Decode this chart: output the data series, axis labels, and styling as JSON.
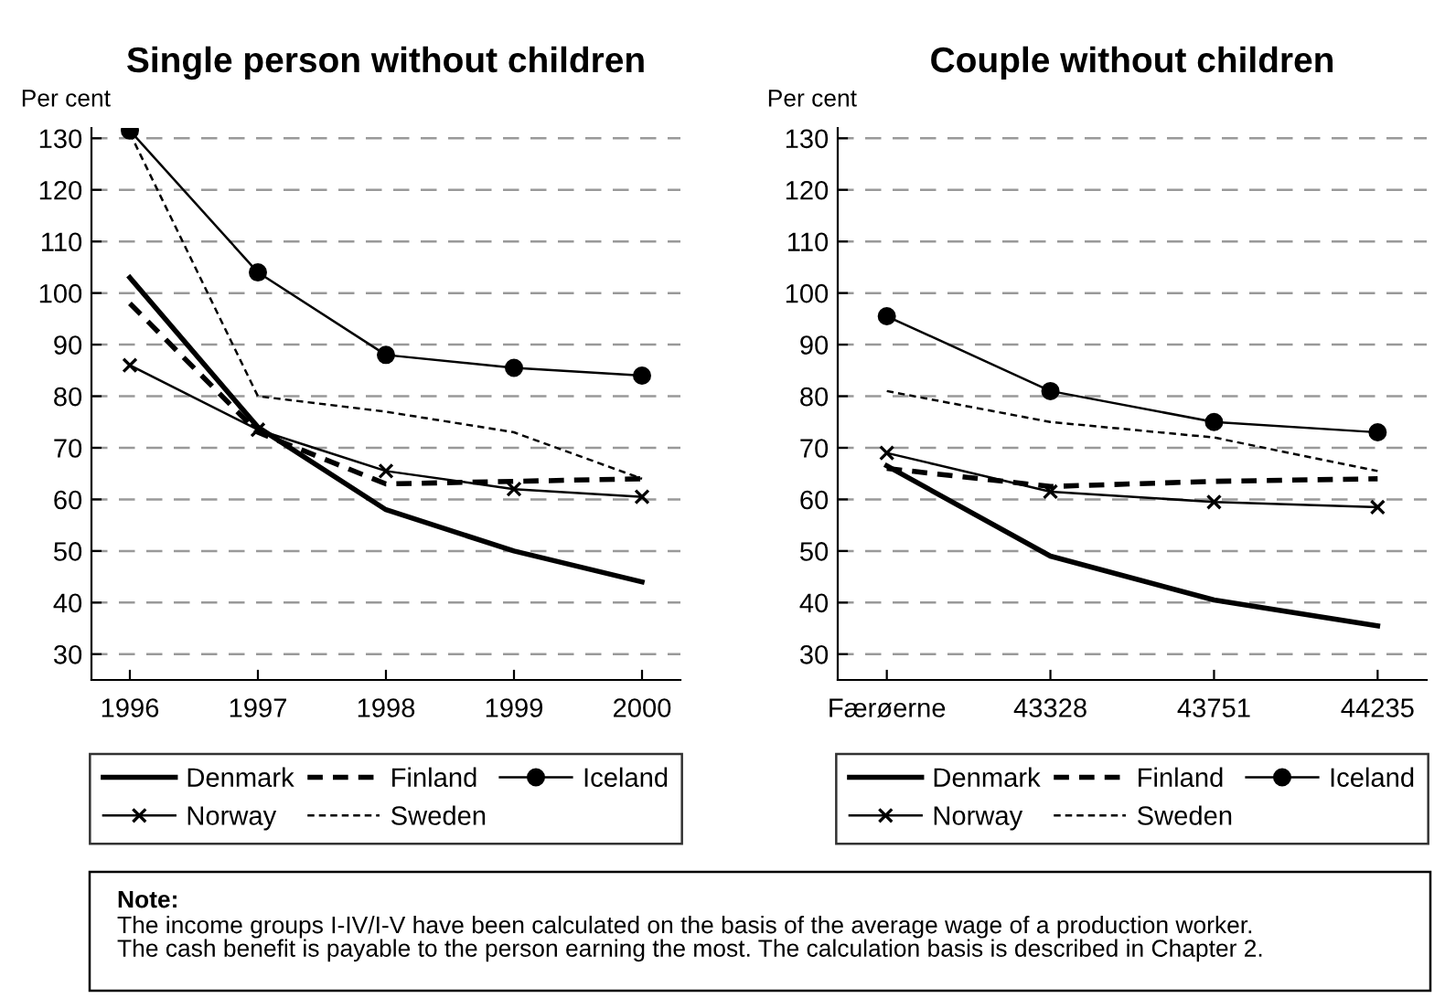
{
  "chart_data": [
    {
      "type": "line",
      "title": "Single person without children",
      "ylabel": "Per cent",
      "categories": [
        "1996",
        "1997",
        "1998",
        "1999",
        "2000"
      ],
      "ylim": [
        25,
        132
      ],
      "yticks": [
        30,
        40,
        50,
        60,
        70,
        80,
        90,
        100,
        110,
        120,
        130
      ],
      "grid": "y",
      "legend": "bottom",
      "series": [
        {
          "name": "Denmark",
          "color": "#000000",
          "line_style": "solid",
          "marker": "none",
          "values": [
            103,
            74,
            58,
            50,
            44
          ]
        },
        {
          "name": "Finland",
          "color": "#000000",
          "line_style": "dashed",
          "marker": "none",
          "values": [
            98,
            73,
            63,
            63.5,
            64
          ]
        },
        {
          "name": "Iceland",
          "color": "#000000",
          "line_style": "solid",
          "marker": "circle",
          "values": [
            131.5,
            104,
            88,
            85.5,
            84
          ]
        },
        {
          "name": "Norway",
          "color": "#000000",
          "line_style": "solid",
          "marker": "cross",
          "values": [
            86,
            73.5,
            65.5,
            62,
            60.5
          ]
        },
        {
          "name": "Sweden",
          "color": "#000000",
          "line_style": "dashed",
          "marker": "none",
          "values": [
            131,
            80,
            77,
            73,
            64
          ]
        }
      ],
      "annotations": [
        "Note:",
        "The income groups I-IV/I-V have been calculated on the basis of the average wage of a production worker.\nThe cash benefit is payable to the person earning the most. The calculation basis is described in Chapter 2."
      ]
    },
    {
      "type": "line",
      "title": "Couple without children",
      "ylabel": "Per cent",
      "categories": [
        "Færøerne",
        "43328",
        "43751",
        "44235"
      ],
      "ylim": [
        25,
        132
      ],
      "yticks": [
        30,
        40,
        50,
        60,
        70,
        80,
        90,
        100,
        110,
        120,
        130
      ],
      "grid": "y",
      "legend": "bottom",
      "series": [
        {
          "name": "Denmark",
          "color": "#000000",
          "line_style": "solid",
          "marker": "none",
          "values": [
            66.5,
            49,
            40.5,
            35.5
          ]
        },
        {
          "name": "Finland",
          "color": "#000000",
          "line_style": "dashed",
          "marker": "none",
          "values": [
            66,
            62.5,
            63.5,
            64
          ]
        },
        {
          "name": "Iceland",
          "color": "#000000",
          "line_style": "solid",
          "marker": "circle",
          "values": [
            95.5,
            81,
            75,
            73
          ]
        },
        {
          "name": "Norway",
          "color": "#000000",
          "line_style": "solid",
          "marker": "cross",
          "values": [
            69,
            61.5,
            59.5,
            58.5
          ]
        },
        {
          "name": "Sweden",
          "color": "#000000",
          "line_style": "dashed",
          "marker": "none",
          "values": [
            81,
            75,
            72,
            65.5
          ]
        }
      ]
    }
  ]
}
